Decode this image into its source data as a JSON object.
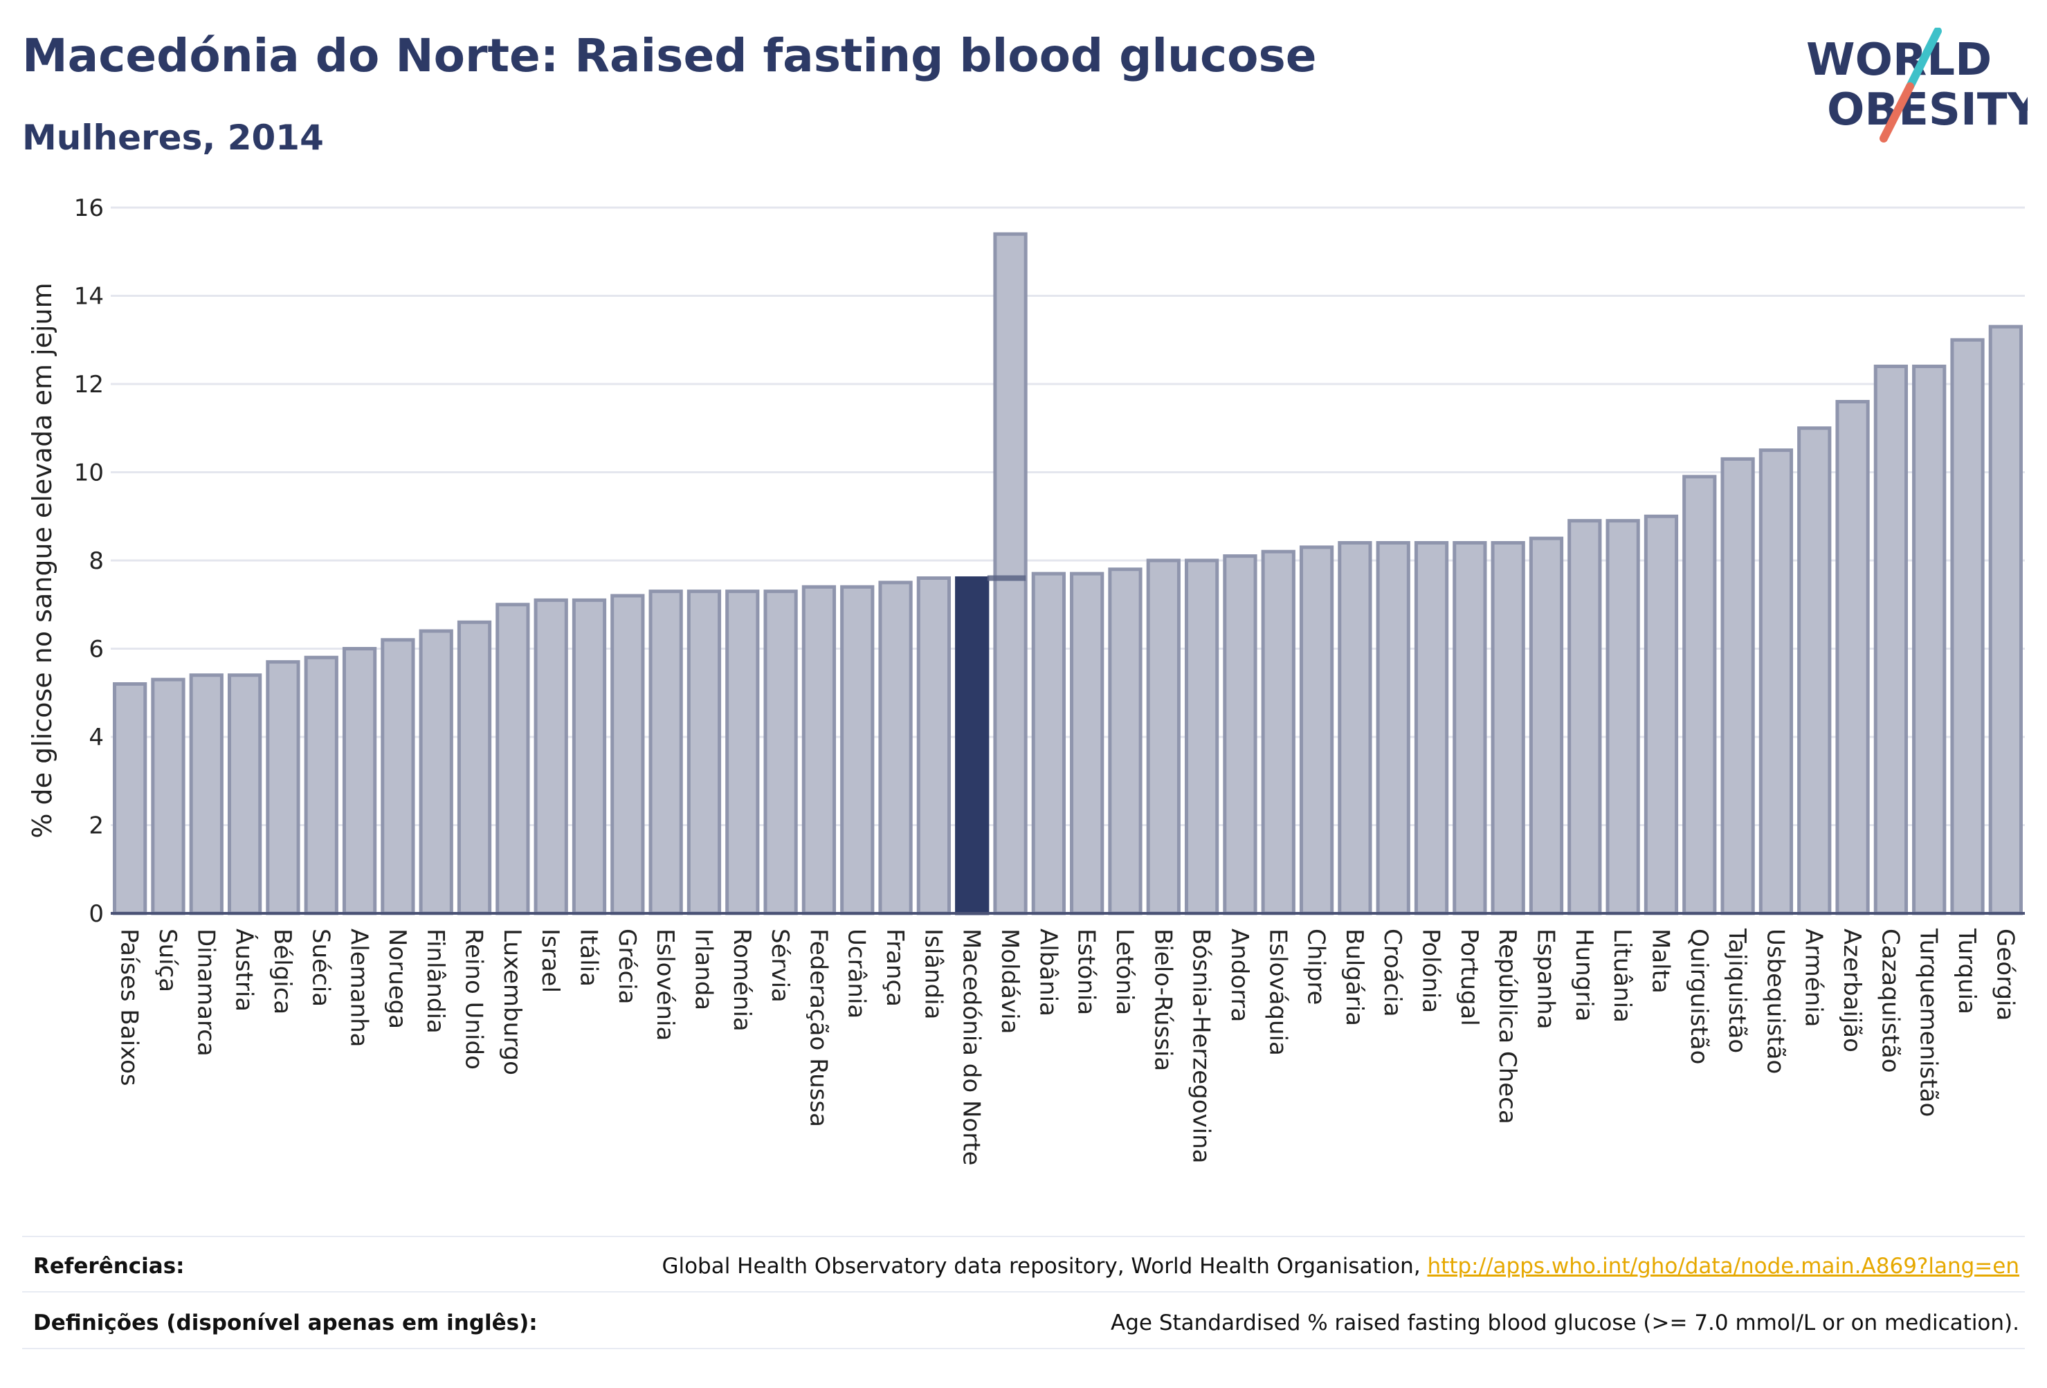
{
  "header": {
    "title": "Macedónia do Norte: Raised fasting blood glucose",
    "subtitle": "Mulheres, 2014"
  },
  "logo": {
    "line1": "WORLD",
    "line2": "OBESITY",
    "colors": {
      "text": "#2d3a66",
      "slash_top": "#3ec1c9",
      "slash_bottom": "#e8705a"
    }
  },
  "chart_data": {
    "type": "bar",
    "ylabel": "% de glicose no sangue elevada em jejum",
    "ylim": [
      0,
      16
    ],
    "yticks": [
      0,
      2,
      4,
      6,
      8,
      10,
      12,
      14,
      16
    ],
    "grid": true,
    "highlight": "Macedónia do Norte",
    "reference_line": 7.6,
    "colors": {
      "bar": "#b9bdcc",
      "bar_stroke": "#8f95ad",
      "highlight": "#2d3a66",
      "grid": "#e4e6ee",
      "reference": "#5b6485"
    },
    "categories": [
      "Países Baixos",
      "Suíça",
      "Dinamarca",
      "Áustria",
      "Bélgica",
      "Suécia",
      "Alemanha",
      "Noruega",
      "Finlândia",
      "Reino Unido",
      "Luxemburgo",
      "Israel",
      "Itália",
      "Grécia",
      "Eslovénia",
      "Irlanda",
      "Roménia",
      "Sérvia",
      "Federação Russa",
      "Ucrânia",
      "França",
      "Islândia",
      "Macedónia do Norte",
      "Moldávia",
      "Albânia",
      "Estónia",
      "Letónia",
      "Bielo-Rússia",
      "Bósnia-Herzegovina",
      "Andorra",
      "Eslováquia",
      "Chipre",
      "Bulgária",
      "Croácia",
      "Polónia",
      "Portugal",
      "República Checa",
      "Espanha",
      "Hungria",
      "Lituânia",
      "Malta",
      "Quirguistão",
      "Tajiquistão",
      "Usbequistão",
      "Arménia",
      "Azerbaijão",
      "Cazaquistão",
      "Turquemenistão",
      "Turquia",
      "Geórgia"
    ],
    "values": [
      5.2,
      5.3,
      5.4,
      5.4,
      5.7,
      5.8,
      6.0,
      6.2,
      6.4,
      6.6,
      7.0,
      7.1,
      7.1,
      7.2,
      7.3,
      7.3,
      7.3,
      7.3,
      7.4,
      7.4,
      7.5,
      7.6,
      7.6,
      15.4,
      7.7,
      7.7,
      7.8,
      8.0,
      8.0,
      8.1,
      8.2,
      8.3,
      8.4,
      8.4,
      8.4,
      8.4,
      8.4,
      8.5,
      8.9,
      8.9,
      9.0,
      9.9,
      10.3,
      10.5,
      11.0,
      11.6,
      12.4,
      12.4,
      13.0,
      13.3
    ]
  },
  "footer": {
    "references_label": "Referências:",
    "references_text": "Global Health Observatory data repository, World Health Organisation, ",
    "references_link": "http://apps.who.int/gho/data/node.main.A869?lang=en",
    "definitions_label": "Definições (disponível apenas em inglês):",
    "definitions_text": "Age Standardised % raised fasting blood glucose (>= 7.0 mmol/L or on medication)."
  }
}
